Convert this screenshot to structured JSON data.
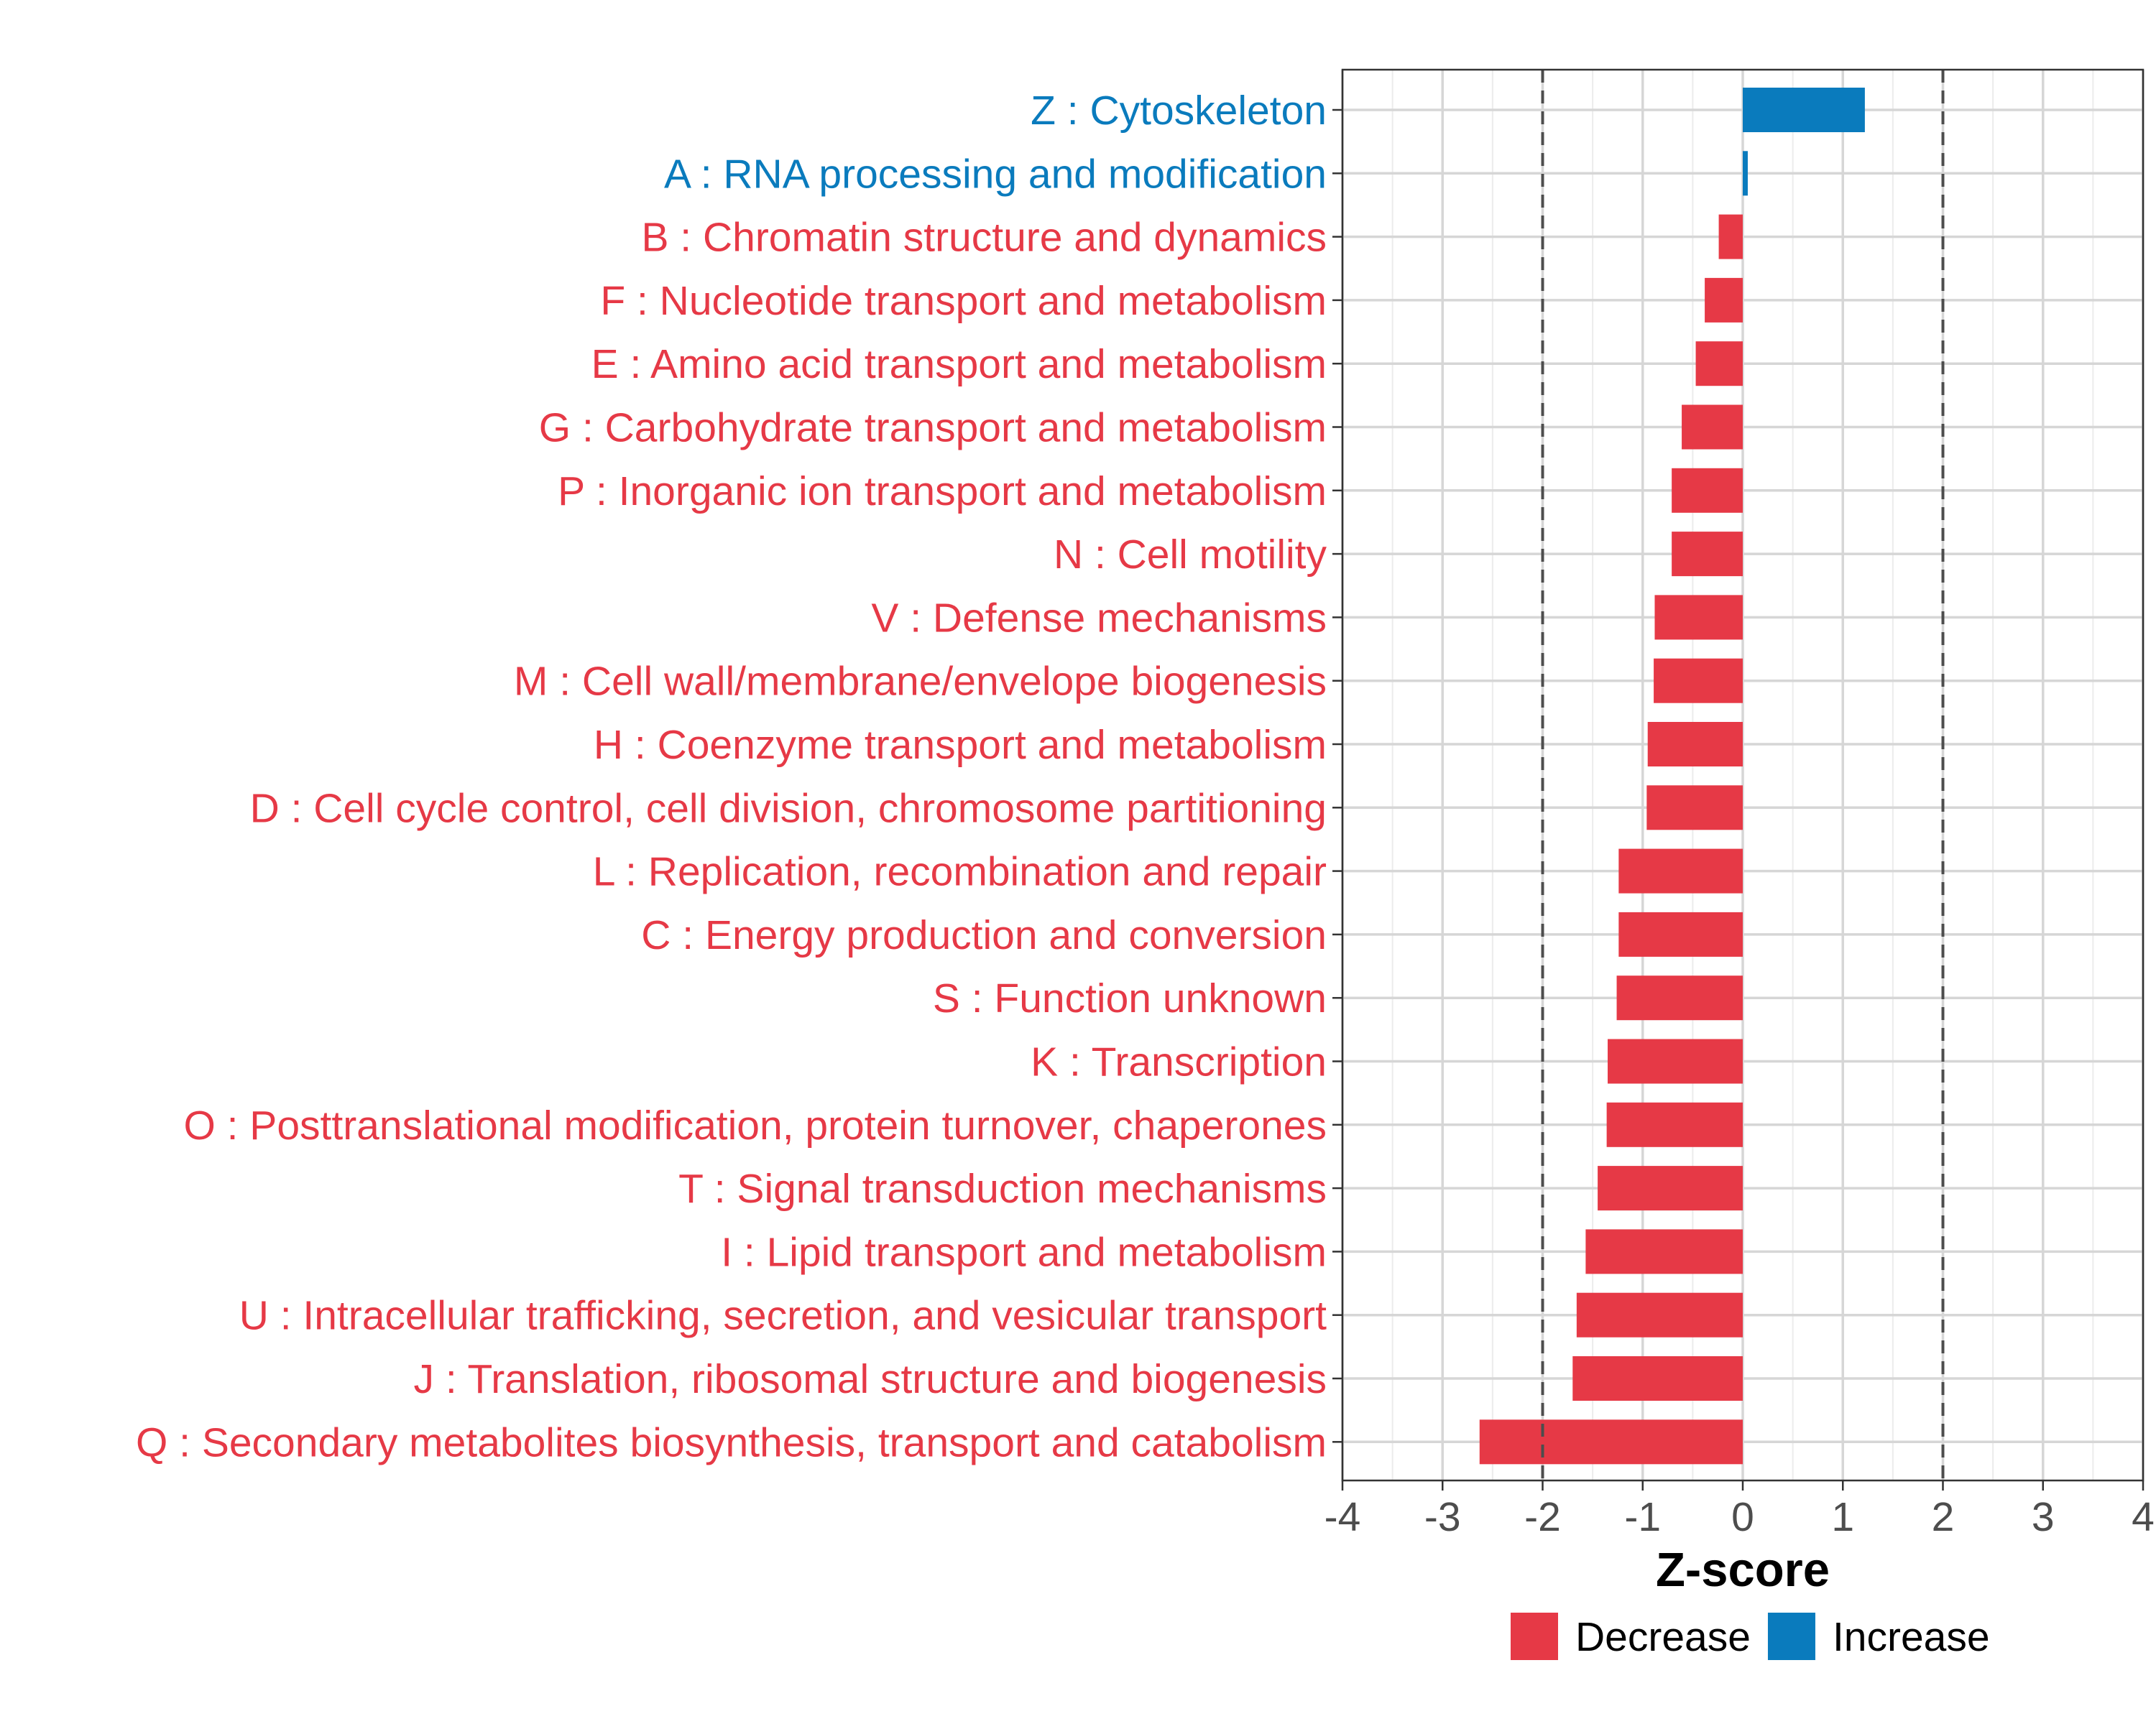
{
  "chart_data": {
    "type": "bar",
    "orientation": "horizontal",
    "xlabel": "Z-score",
    "xlim": [
      -4,
      4
    ],
    "xticks": [
      -4,
      -3,
      -2,
      -1,
      0,
      1,
      2,
      3,
      4
    ],
    "threshold_lines": [
      -2,
      2
    ],
    "categories": [
      "Z : Cytoskeleton",
      "A : RNA processing and modification",
      "B : Chromatin structure and dynamics",
      "F : Nucleotide transport and metabolism",
      "E : Amino acid transport and metabolism",
      "G : Carbohydrate transport and metabolism",
      "P : Inorganic ion transport and metabolism",
      "N : Cell motility",
      "V : Defense mechanisms",
      "M : Cell wall/membrane/envelope biogenesis",
      "H : Coenzyme transport and metabolism",
      "D : Cell cycle control, cell division, chromosome partitioning",
      "L : Replication, recombination and repair",
      "C : Energy production and conversion",
      "S : Function unknown",
      "K : Transcription",
      "O : Posttranslational modification, protein turnover, chaperones",
      "T : Signal transduction mechanisms",
      "I : Lipid transport and metabolism",
      "U : Intracellular trafficking, secretion, and vesicular transport",
      "J : Translation, ribosomal structure and biogenesis",
      "Q : Secondary metabolites biosynthesis, transport and catabolism"
    ],
    "values": [
      1.22,
      0.05,
      -0.24,
      -0.38,
      -0.47,
      -0.61,
      -0.71,
      -0.71,
      -0.88,
      -0.89,
      -0.95,
      -0.96,
      -1.24,
      -1.24,
      -1.26,
      -1.35,
      -1.36,
      -1.45,
      -1.57,
      -1.66,
      -1.7,
      -2.63
    ],
    "direction": [
      "Increase",
      "Increase",
      "Decrease",
      "Decrease",
      "Decrease",
      "Decrease",
      "Decrease",
      "Decrease",
      "Decrease",
      "Decrease",
      "Decrease",
      "Decrease",
      "Decrease",
      "Decrease",
      "Decrease",
      "Decrease",
      "Decrease",
      "Decrease",
      "Decrease",
      "Decrease",
      "Decrease",
      "Decrease"
    ],
    "legend": [
      {
        "name": "Decrease",
        "color": "#e63946"
      },
      {
        "name": "Increase",
        "color": "#0a7bbd"
      }
    ],
    "legend_position": "bottom",
    "grid": true
  }
}
